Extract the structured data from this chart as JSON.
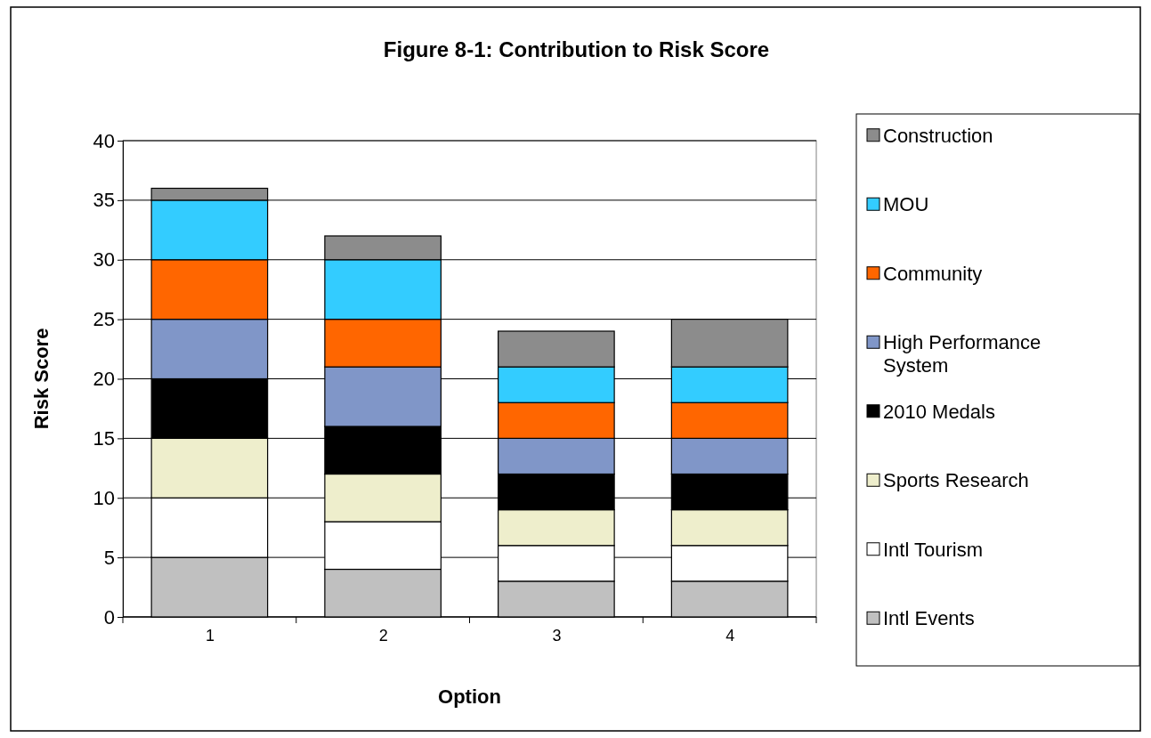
{
  "chart_data": {
    "type": "bar",
    "title": "Figure 8-1: Contribution to Risk Score",
    "xlabel": "Option",
    "ylabel": "Risk Score",
    "categories": [
      "1",
      "2",
      "3",
      "4"
    ],
    "stacked": true,
    "ylim": [
      0,
      40
    ],
    "yticks": [
      0,
      5,
      10,
      15,
      20,
      25,
      30,
      35,
      40
    ],
    "grid": "y",
    "legend": "right",
    "series": [
      {
        "name": "Intl Events",
        "color": "#c0c0c0",
        "values": [
          5,
          4,
          3,
          3
        ]
      },
      {
        "name": "Intl Tourism",
        "color": "#ffffff",
        "values": [
          5,
          4,
          3,
          3
        ]
      },
      {
        "name": "Sports Research",
        "color": "#eeeecc",
        "values": [
          5,
          4,
          3,
          3
        ]
      },
      {
        "name": "2010 Medals",
        "color": "#000000",
        "values": [
          5,
          4,
          3,
          3
        ]
      },
      {
        "name": "High Performance System",
        "color": "#8096c8",
        "values": [
          5,
          5,
          3,
          3
        ]
      },
      {
        "name": "Community",
        "color": "#ff6600",
        "values": [
          5,
          4,
          3,
          3
        ]
      },
      {
        "name": "MOU",
        "color": "#33ccff",
        "values": [
          5,
          5,
          3,
          3
        ]
      },
      {
        "name": "Construction",
        "color": "#8c8c8c",
        "values": [
          1,
          2,
          3,
          4
        ]
      }
    ]
  }
}
